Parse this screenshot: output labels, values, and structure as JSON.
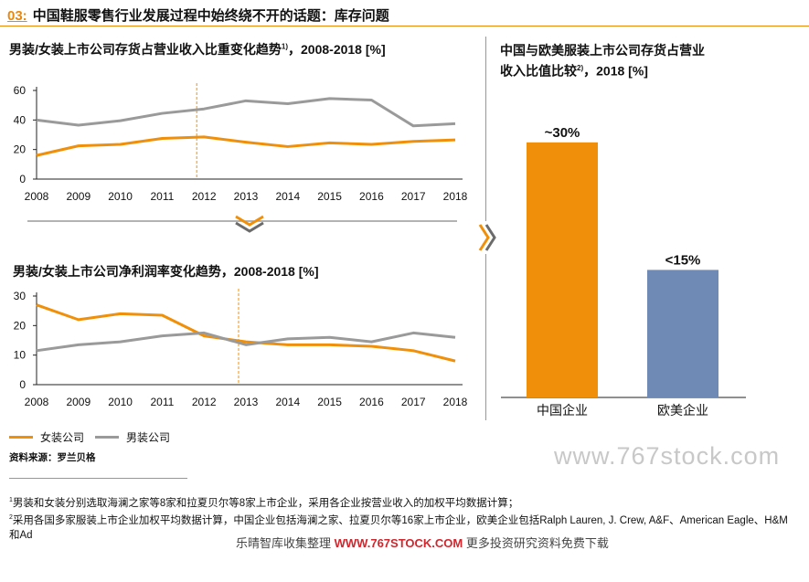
{
  "header": {
    "number": "03:",
    "title": "中国鞋服零售行业发展过程中始终绕不开的话题：库存问题"
  },
  "left_top": {
    "title": "男装/女装上市公司存货占营业收入比重变化趋势",
    "sup": "1)",
    "title_suffix": "，2008-2018 [%]"
  },
  "left_bottom": {
    "title": "男装/女装上市公司净利润率变化趋势，2008-2018 [%]"
  },
  "right": {
    "title_line1": "中国与欧美服装上市公司存货占营业",
    "title_line2": "收入比值比较",
    "sup": "2)",
    "title_line2_suffix": "，2018 [%]"
  },
  "colors": {
    "orange": "#f0900a",
    "gray": "#9a9a9a",
    "blue": "#6e8ab5",
    "accent": "#e8890c"
  },
  "legend": [
    {
      "name": "女装公司",
      "color": "#f0900a"
    },
    {
      "name": "男装公司",
      "color": "#9a9a9a"
    }
  ],
  "source": "资料来源：罗兰贝格",
  "footnotes": {
    "n1_sup": "1",
    "n1": "男装和女装分别选取海澜之家等8家和拉夏贝尔等8家上市企业，采用各企业按营业收入的加权平均数据计算；",
    "n2_sup": "2",
    "n2": "采用各国多家服装上市企业加权平均数据计算，中国企业包括海澜之家、拉夏贝尔等16家上市企业，欧美企业包括Ralph Lauren, J. Crew, A&F、American Eagle、H&M和Ad"
  },
  "watermark": {
    "main": "www.767stock.com",
    "bottom_prefix": "乐晴智库收集整理",
    "bottom_url": "WWW.767STOCK.COM",
    "bottom_suffix": "更多投资研究资料免费下载"
  },
  "chart_data": [
    {
      "type": "line",
      "title": "男装/女装上市公司存货占营业收入比重变化趋势，2008-2018 [%]",
      "x": [
        "2008",
        "2009",
        "2010",
        "2011",
        "2012",
        "2013",
        "2014",
        "2015",
        "2016",
        "2017",
        "2018"
      ],
      "ylim": [
        0,
        60
      ],
      "yticks": [
        0,
        20,
        40,
        60
      ],
      "series": [
        {
          "name": "女装公司",
          "color": "#f0900a",
          "values": [
            16,
            22.5,
            23.5,
            27.5,
            28.5,
            25,
            22,
            24.5,
            23.5,
            25.5,
            26.5
          ]
        },
        {
          "name": "男装公司",
          "color": "#9a9a9a",
          "values": [
            40,
            36.5,
            39.5,
            44.5,
            47.5,
            53,
            51,
            54.5,
            53.5,
            36,
            37.5
          ]
        }
      ],
      "marker_year": "2012"
    },
    {
      "type": "line",
      "title": "男装/女装上市公司净利润率变化趋势，2008-2018 [%]",
      "x": [
        "2008",
        "2009",
        "2010",
        "2011",
        "2012",
        "2013",
        "2014",
        "2015",
        "2016",
        "2017",
        "2018"
      ],
      "ylim": [
        0,
        30
      ],
      "yticks": [
        0,
        10,
        20,
        30
      ],
      "series": [
        {
          "name": "女装公司",
          "color": "#f0900a",
          "values": [
            27,
            22,
            24,
            23.5,
            16.5,
            14.5,
            13.5,
            13.5,
            13,
            11.5,
            8
          ]
        },
        {
          "name": "男装公司",
          "color": "#9a9a9a",
          "values": [
            11.5,
            13.5,
            14.5,
            16.5,
            17.5,
            13.5,
            15.5,
            16,
            14.5,
            17.5,
            16
          ]
        }
      ],
      "marker_year": "2013"
    },
    {
      "type": "bar",
      "title": "中国与欧美服装上市公司存货占营业收入比值比较，2018 [%]",
      "categories": [
        "中国企业",
        "欧美企业"
      ],
      "values": [
        30,
        15
      ],
      "data_labels": [
        "~30%",
        "<15%"
      ],
      "colors": [
        "#f0900a",
        "#6e8ab5"
      ],
      "ylim": [
        0,
        36
      ]
    }
  ]
}
